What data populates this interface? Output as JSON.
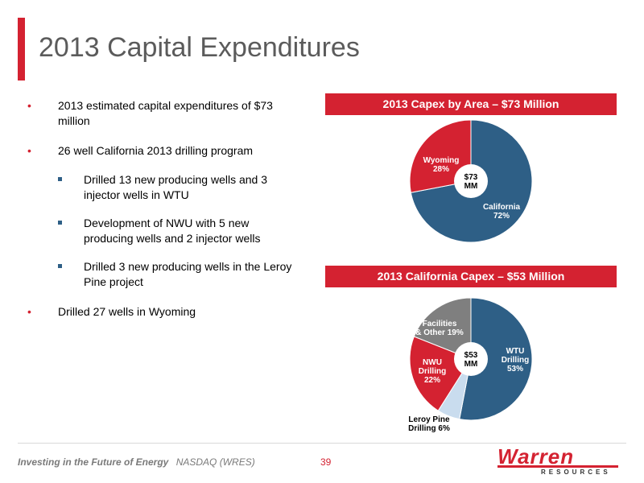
{
  "title": "2013 Capital Expenditures",
  "bullets": [
    {
      "text": "2013 estimated capital expenditures of $73 million"
    },
    {
      "text": "26 well California 2013 drilling program"
    },
    {
      "text": "Drilled 27 wells in Wyoming"
    }
  ],
  "sub_bullets": [
    {
      "text": "Drilled 13 new producing wells and 3 injector wells in WTU"
    },
    {
      "text": "Development of NWU with 5 new producing wells and 2 injector wells"
    },
    {
      "text": "Drilled 3 new producing wells in the Leroy Pine project"
    }
  ],
  "chart1_header": "2013 Capex by Area – $73 Million",
  "chart2_header": "2013 California Capex – $53 Million",
  "colors": {
    "accent": "#d42231",
    "blue": "#2e5f86",
    "gray": "#7f7f7f",
    "light_blue": "#c9dcee"
  },
  "chart_data": [
    {
      "type": "pie",
      "title": "2013 Capex by Area – $73 Million",
      "center_label": [
        "$73",
        "MM"
      ],
      "slices": [
        {
          "label": [
            "California",
            "72%"
          ],
          "value": 72,
          "color": "#2e5f86"
        },
        {
          "label": [
            "Wyoming",
            "28%"
          ],
          "value": 28,
          "color": "#d42231"
        }
      ]
    },
    {
      "type": "pie",
      "title": "2013 California Capex – $53 Million",
      "center_label": [
        "$53",
        "MM"
      ],
      "slices": [
        {
          "label": [
            "WTU",
            "Drilling",
            "53%"
          ],
          "value": 53,
          "color": "#2e5f86"
        },
        {
          "label": [
            "Leroy Pine",
            "Drilling 6%"
          ],
          "value": 6,
          "color": "#c9dcee"
        },
        {
          "label": [
            "NWU",
            "Drilling",
            "22%"
          ],
          "value": 22,
          "color": "#d42231"
        },
        {
          "label": [
            "Facilities",
            "& Other 19%"
          ],
          "value": 19,
          "color": "#7f7f7f"
        }
      ]
    }
  ],
  "footer": {
    "tagline": "Investing in the Future of Energy",
    "ticker": "NASDAQ (WRES)",
    "page": "39",
    "logo_word": "Warren",
    "logo_sub": "RESOURCES"
  }
}
